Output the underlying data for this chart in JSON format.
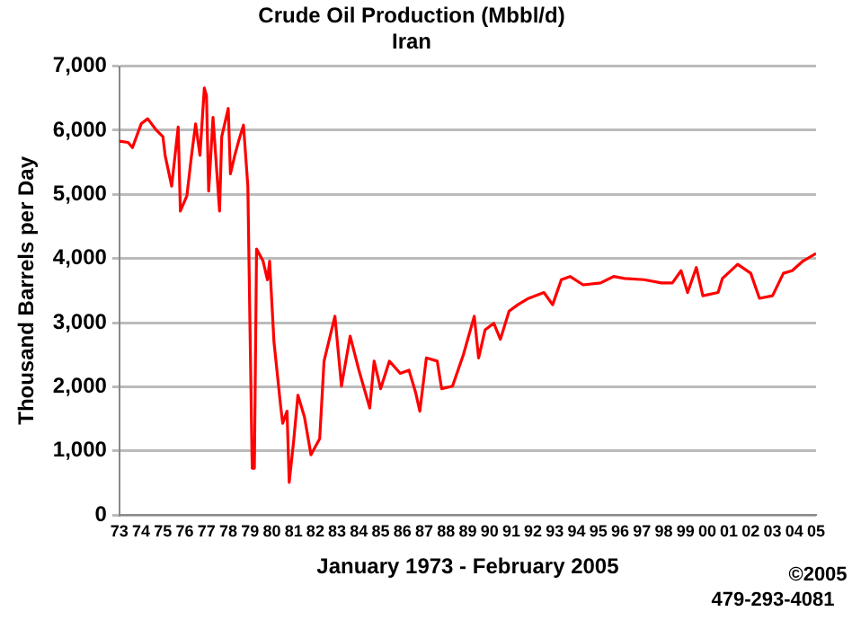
{
  "chart_data": {
    "type": "line",
    "title": "Crude Oil Production (Mbbl/d)",
    "subtitle": "Iran",
    "xlabel": "January 1973 - February 2005",
    "ylabel": "Thousand Barrels per Day",
    "annotations": [
      "©2005",
      "479-293-4081"
    ],
    "x": [
      1973.0,
      1973.4,
      1973.6,
      1974.0,
      1974.3,
      1974.7,
      1975.0,
      1975.1,
      1975.4,
      1975.7,
      1975.8,
      1976.1,
      1976.3,
      1976.5,
      1976.7,
      1976.9,
      1977.0,
      1977.1,
      1977.3,
      1977.6,
      1977.7,
      1978.0,
      1978.1,
      1978.3,
      1978.5,
      1978.7,
      1978.9,
      1979.0,
      1979.1,
      1979.2,
      1979.3,
      1979.6,
      1979.8,
      1979.9,
      1980.1,
      1980.4,
      1980.5,
      1980.7,
      1980.8,
      1981.0,
      1981.2,
      1981.5,
      1981.8,
      1982.2,
      1982.4,
      1982.9,
      1983.2,
      1983.6,
      1984.0,
      1984.5,
      1984.7,
      1985.0,
      1985.4,
      1985.9,
      1986.3,
      1986.6,
      1986.8,
      1987.1,
      1987.6,
      1987.8,
      1988.3,
      1988.8,
      1989.3,
      1989.5,
      1989.8,
      1990.2,
      1990.5,
      1990.9,
      1991.3,
      1991.8,
      1992.5,
      1992.9,
      1993.3,
      1993.7,
      1994.3,
      1995.1,
      1995.7,
      1996.2,
      1997.1,
      1997.9,
      1998.4,
      1998.8,
      1999.1,
      1999.5,
      1999.8,
      2000.5,
      2000.7,
      2001.4,
      2002.0,
      2002.4,
      2003.0,
      2003.5,
      2003.9,
      2004.4,
      2005.0
    ],
    "series": [
      {
        "color": "#ff0000",
        "values": [
          5830,
          5810,
          5730,
          6100,
          6180,
          6000,
          5900,
          5610,
          5130,
          6050,
          4740,
          4980,
          5570,
          6100,
          5610,
          6660,
          6540,
          5050,
          6200,
          4740,
          5900,
          6340,
          5320,
          5610,
          5860,
          6080,
          5130,
          2890,
          730,
          730,
          4150,
          3960,
          3670,
          3960,
          2700,
          1720,
          1430,
          1620,
          510,
          1140,
          1870,
          1530,
          940,
          1190,
          2400,
          3100,
          2010,
          2790,
          2260,
          1670,
          2400,
          1970,
          2400,
          2210,
          2260,
          1920,
          1620,
          2450,
          2400,
          1970,
          2010,
          2500,
          3100,
          2450,
          2890,
          2990,
          2740,
          3180,
          3280,
          3380,
          3470,
          3280,
          3670,
          3720,
          3590,
          3620,
          3720,
          3690,
          3670,
          3620,
          3620,
          3810,
          3470,
          3860,
          3420,
          3470,
          3690,
          3910,
          3770,
          3380,
          3420,
          3770,
          3810,
          3960,
          4080
        ]
      }
    ],
    "xlim": [
      1973,
      2005
    ],
    "xticks": [
      {
        "value": 1973,
        "label": "73"
      },
      {
        "value": 1974,
        "label": "74"
      },
      {
        "value": 1975,
        "label": "75"
      },
      {
        "value": 1976,
        "label": "76"
      },
      {
        "value": 1977,
        "label": "77"
      },
      {
        "value": 1978,
        "label": "78"
      },
      {
        "value": 1979,
        "label": "79"
      },
      {
        "value": 1980,
        "label": "80"
      },
      {
        "value": 1981,
        "label": "81"
      },
      {
        "value": 1982,
        "label": "82"
      },
      {
        "value": 1983,
        "label": "83"
      },
      {
        "value": 1984,
        "label": "84"
      },
      {
        "value": 1985,
        "label": "85"
      },
      {
        "value": 1986,
        "label": "86"
      },
      {
        "value": 1987,
        "label": "87"
      },
      {
        "value": 1988,
        "label": "88"
      },
      {
        "value": 1989,
        "label": "89"
      },
      {
        "value": 1990,
        "label": "90"
      },
      {
        "value": 1991,
        "label": "91"
      },
      {
        "value": 1992,
        "label": "92"
      },
      {
        "value": 1993,
        "label": "93"
      },
      {
        "value": 1994,
        "label": "94"
      },
      {
        "value": 1995,
        "label": "95"
      },
      {
        "value": 1996,
        "label": "96"
      },
      {
        "value": 1997,
        "label": "97"
      },
      {
        "value": 1998,
        "label": "98"
      },
      {
        "value": 1999,
        "label": "99"
      },
      {
        "value": 2000,
        "label": "00"
      },
      {
        "value": 2001,
        "label": "01"
      },
      {
        "value": 2002,
        "label": "02"
      },
      {
        "value": 2003,
        "label": "03"
      },
      {
        "value": 2004,
        "label": "04"
      },
      {
        "value": 2005,
        "label": "05"
      }
    ],
    "ylim": [
      0,
      7000
    ],
    "yticks": [
      0,
      {
        "value": 1000,
        "label": "1,000"
      },
      {
        "value": 2000,
        "label": "2,000"
      },
      {
        "value": 3000,
        "label": "3,000"
      },
      {
        "value": 4000,
        "label": "4,000"
      },
      {
        "value": 5000,
        "label": "5,000"
      },
      {
        "value": 6000,
        "label": "6,000"
      },
      {
        "value": 7000,
        "label": "7,000"
      }
    ],
    "grid": "y",
    "legend": false,
    "marker": "none",
    "line_style": "solid"
  }
}
